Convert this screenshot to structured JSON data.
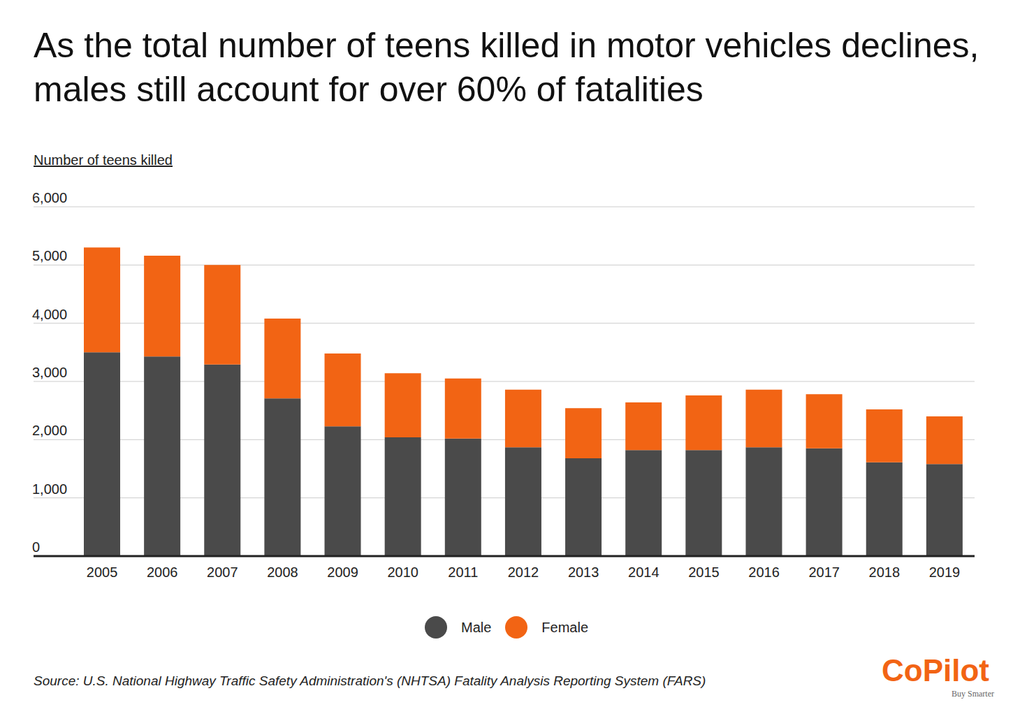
{
  "chart_data": {
    "type": "bar",
    "title": "As the total number of teens killed in motor vehicles declines, males still account for over 60% of fatalities",
    "y_label": "Number of teens killed",
    "source": "Source:  U.S. National Highway Traffic Safety Administration's (NHTSA) Fatality Analysis Reporting System (FARS)",
    "logo": "CoPilot",
    "logo_tagline": "Buy Smarter",
    "categories": [
      "2005",
      "2006",
      "2007",
      "2008",
      "2009",
      "2010",
      "2011",
      "2012",
      "2013",
      "2014",
      "2015",
      "2016",
      "2017",
      "2018",
      "2019"
    ],
    "series": [
      {
        "name": "Male",
        "color": "#4a4a4a",
        "values": [
          3500,
          3430,
          3290,
          2710,
          2230,
          2040,
          2020,
          1870,
          1680,
          1820,
          1820,
          1870,
          1850,
          1610,
          1580
        ]
      },
      {
        "name": "Female",
        "color": "#f26414",
        "values": [
          1800,
          1730,
          1710,
          1370,
          1250,
          1100,
          1030,
          990,
          860,
          820,
          940,
          990,
          930,
          910,
          820
        ]
      }
    ],
    "stacked": true,
    "ylim": [
      0,
      6000
    ],
    "yticks": [
      0,
      {
        "value": 1000,
        "label": "1,000"
      },
      {
        "value": 2000,
        "label": "2,000"
      },
      {
        "value": 3000,
        "label": "3,000"
      },
      {
        "value": 4000,
        "label": "4,000"
      },
      {
        "value": 5000,
        "label": "5,000"
      },
      {
        "value": 6000,
        "label": "6,000"
      }
    ],
    "grid": true
  }
}
